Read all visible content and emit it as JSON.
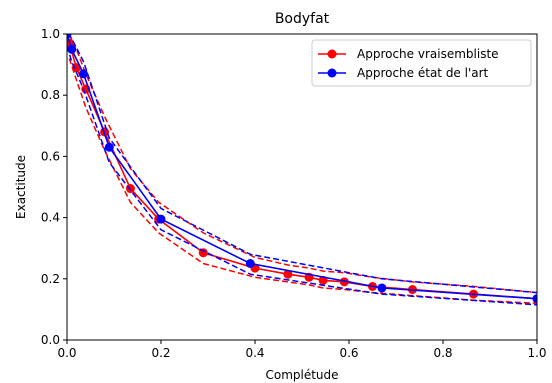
{
  "chart_data": {
    "type": "line",
    "title": "Bodyfat",
    "xlabel": "Complétude",
    "ylabel": "Exactitude",
    "xlim": [
      0.0,
      1.0
    ],
    "ylim": [
      0.0,
      1.0
    ],
    "xticks": [
      "0.0",
      "0.2",
      "0.4",
      "0.6",
      "0.8",
      "1.0"
    ],
    "yticks": [
      "0.0",
      "0.2",
      "0.4",
      "0.6",
      "0.8",
      "1.0"
    ],
    "grid": false,
    "legend": "top-right",
    "series": [
      {
        "name": "Approche vraisembliste",
        "color": "#ff0000",
        "x": [
          0.005,
          0.02,
          0.04,
          0.08,
          0.135,
          0.195,
          0.29,
          0.4,
          0.47,
          0.515,
          0.545,
          0.59,
          0.65,
          0.735,
          0.865,
          1.0
        ],
        "y": [
          0.97,
          0.89,
          0.82,
          0.68,
          0.495,
          0.395,
          0.285,
          0.235,
          0.215,
          0.205,
          0.195,
          0.19,
          0.175,
          0.165,
          0.15,
          0.135
        ],
        "upper": [
          1.0,
          0.95,
          0.87,
          0.73,
          0.56,
          0.45,
          0.35,
          0.27,
          0.245,
          0.235,
          0.225,
          0.22,
          0.205,
          0.19,
          0.175,
          0.155
        ],
        "lower": [
          0.92,
          0.85,
          0.76,
          0.62,
          0.45,
          0.35,
          0.25,
          0.205,
          0.19,
          0.18,
          0.17,
          0.165,
          0.155,
          0.145,
          0.13,
          0.12
        ]
      },
      {
        "name": "Approche état de l'art",
        "color": "#0000ff",
        "x": [
          0.0,
          0.01,
          0.035,
          0.09,
          0.2,
          0.39,
          0.67,
          1.0
        ],
        "y": [
          1.0,
          0.95,
          0.87,
          0.63,
          0.395,
          0.25,
          0.17,
          0.135
        ],
        "upper": [
          1.0,
          0.985,
          0.91,
          0.66,
          0.43,
          0.28,
          0.2,
          0.155
        ],
        "lower": [
          0.96,
          0.91,
          0.82,
          0.58,
          0.36,
          0.215,
          0.15,
          0.115
        ]
      }
    ]
  }
}
